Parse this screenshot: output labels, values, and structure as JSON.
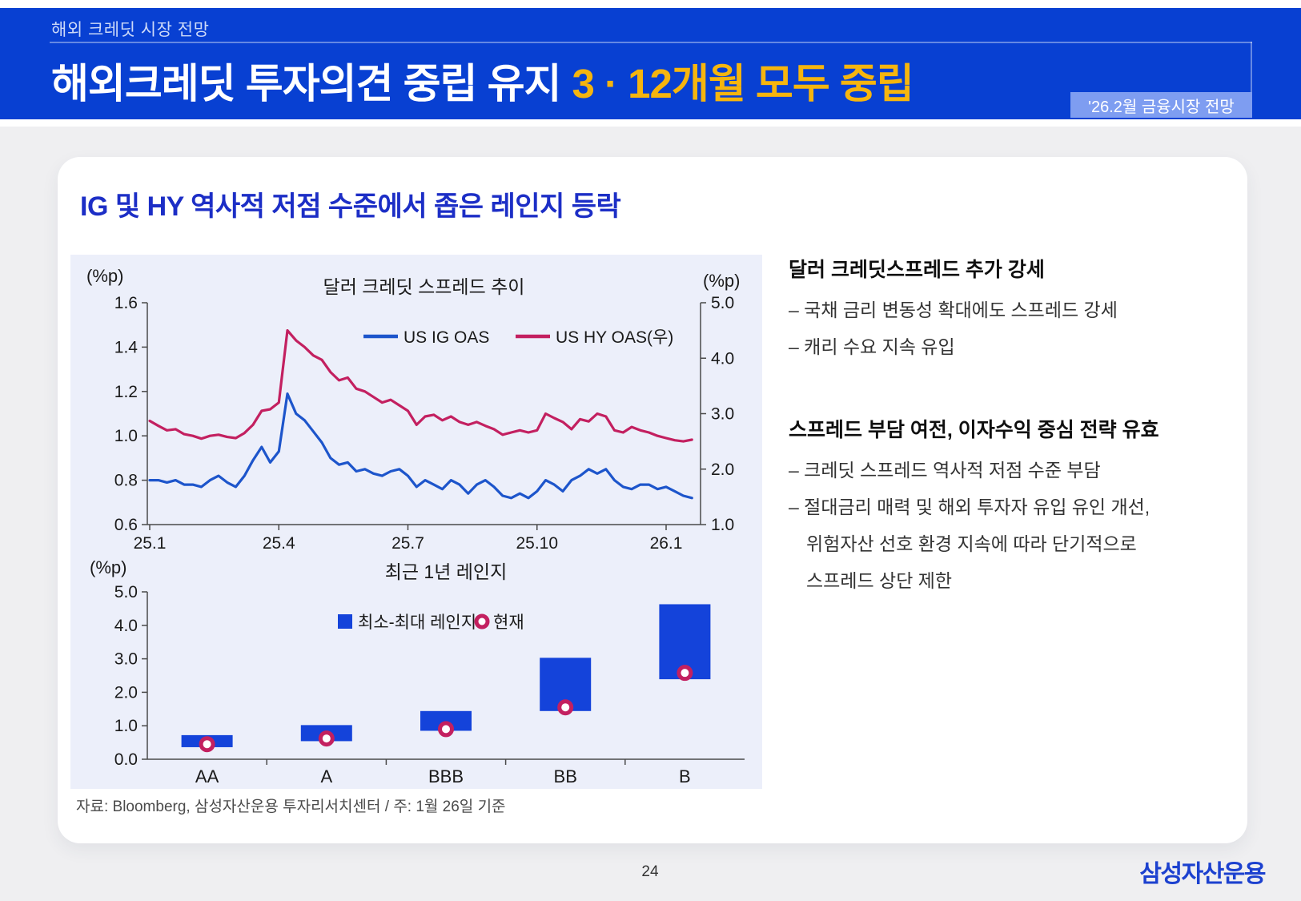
{
  "header": {
    "eyebrow": "해외 크레딧 시장 전망",
    "title_main": "해외크레딧 투자의견 중립 유지",
    "title_accent": "3 · 12개월 모두 중립",
    "badge": "'26.2월 금융시장 전망"
  },
  "card": {
    "title": "IG 및 HY 역사적 저점 수준에서 좁은 레인지 등락",
    "source_note": "자료: Bloomberg, 삼성자산운용 투자리서치센터 / 주: 1월 26일 기준"
  },
  "commentary": {
    "sections": [
      {
        "heading": "달러 크레딧스프레드 추가 강세",
        "lines": [
          {
            "text": "– 국채 금리 변동성 확대에도 스프레드 강세",
            "cont": false
          },
          {
            "text": "– 캐리 수요 지속 유입",
            "cont": false
          }
        ]
      },
      {
        "heading": "스프레드 부담 여전, 이자수익 중심 전략 유효",
        "lines": [
          {
            "text": "– 크레딧 스프레드 역사적 저점 수준 부담",
            "cont": false
          },
          {
            "text": "– 절대금리 매력 및 해외 투자자 유입 유인 개선,",
            "cont": false
          },
          {
            "text": "위험자산 선호 환경 지속에 따라 단기적으로",
            "cont": true
          },
          {
            "text": "스프레드 상단 제한",
            "cont": true
          }
        ]
      }
    ]
  },
  "footer": {
    "page_number": "24",
    "logo": "삼성자산운용"
  },
  "colors": {
    "header_bg": "#0840d2",
    "title_accent": "#f6b50e",
    "badge_bg": "#7e9df1",
    "card_title_blue": "#1c2ec6",
    "panel_bg": "#eceffa",
    "page_bg": "#efeff1",
    "ig_blue": "#1d55cb",
    "hy_crimson": "#c32060",
    "bar_blue": "#1443da",
    "logo_blue": "#1c41cf"
  },
  "chart_data": [
    {
      "type": "line",
      "title": "달러 크레딧 스프레드 추이",
      "left_axis_label": "(%p)",
      "right_axis_label": "(%p)",
      "left_ylim": [
        0.6,
        1.6
      ],
      "right_ylim": [
        1.0,
        5.0
      ],
      "left_ticks": [
        1.6,
        1.4,
        1.2,
        1.0,
        0.8,
        0.6
      ],
      "right_ticks": [
        5.0,
        4.0,
        3.0,
        2.0,
        1.0
      ],
      "x_domain": [
        0,
        12.8
      ],
      "x_tick_positions": [
        0,
        3,
        6,
        9,
        12
      ],
      "x_tick_labels": [
        "25.1",
        "25.4",
        "25.7",
        "25.10",
        "26.1"
      ],
      "legend_position": "top-center",
      "grid": false,
      "series": [
        {
          "name": "US IG OAS",
          "axis": "left",
          "color": "#1d55cb",
          "x_start": 0,
          "x_step": 0.2,
          "values": [
            0.8,
            0.8,
            0.79,
            0.8,
            0.78,
            0.78,
            0.77,
            0.8,
            0.82,
            0.79,
            0.77,
            0.82,
            0.89,
            0.95,
            0.88,
            0.93,
            1.19,
            1.1,
            1.07,
            1.02,
            0.97,
            0.9,
            0.87,
            0.88,
            0.84,
            0.85,
            0.83,
            0.82,
            0.84,
            0.85,
            0.82,
            0.77,
            0.8,
            0.78,
            0.76,
            0.8,
            0.78,
            0.74,
            0.78,
            0.8,
            0.77,
            0.73,
            0.72,
            0.74,
            0.72,
            0.75,
            0.8,
            0.78,
            0.75,
            0.8,
            0.82,
            0.85,
            0.83,
            0.85,
            0.8,
            0.77,
            0.76,
            0.78,
            0.78,
            0.76,
            0.77,
            0.75,
            0.73,
            0.72
          ]
        },
        {
          "name": "US HY OAS(우)",
          "axis": "right",
          "color": "#c32060",
          "x_start": 0,
          "x_step": 0.2,
          "values": [
            2.87,
            2.78,
            2.7,
            2.72,
            2.63,
            2.6,
            2.55,
            2.6,
            2.62,
            2.58,
            2.56,
            2.65,
            2.8,
            3.05,
            3.08,
            3.2,
            4.5,
            4.32,
            4.2,
            4.05,
            3.97,
            3.75,
            3.6,
            3.65,
            3.45,
            3.4,
            3.3,
            3.2,
            3.25,
            3.15,
            3.05,
            2.8,
            2.95,
            2.98,
            2.88,
            2.95,
            2.85,
            2.8,
            2.85,
            2.78,
            2.72,
            2.62,
            2.66,
            2.7,
            2.66,
            2.7,
            3.0,
            2.92,
            2.85,
            2.72,
            2.9,
            2.86,
            3.0,
            2.95,
            2.7,
            2.66,
            2.76,
            2.7,
            2.66,
            2.6,
            2.56,
            2.52,
            2.5,
            2.53
          ]
        }
      ]
    },
    {
      "type": "range-bar",
      "title": "최근 1년 레인지",
      "axis_label": "(%p)",
      "ylim": [
        0,
        5
      ],
      "y_ticks": [
        5.0,
        4.0,
        3.0,
        2.0,
        1.0,
        0.0
      ],
      "categories": [
        "AA",
        "A",
        "BBB",
        "BB",
        "B"
      ],
      "series": [
        {
          "name": "최소-최대 레인지",
          "kind": "range",
          "color": "#1443da",
          "ranges": [
            [
              0.36,
              0.72
            ],
            [
              0.54,
              1.02
            ],
            [
              0.85,
              1.44
            ],
            [
              1.44,
              3.03
            ],
            [
              2.39,
              4.63
            ]
          ]
        },
        {
          "name": "현재",
          "kind": "point",
          "color": "#c32060",
          "values": [
            0.45,
            0.62,
            0.9,
            1.55,
            2.58
          ]
        }
      ]
    }
  ]
}
